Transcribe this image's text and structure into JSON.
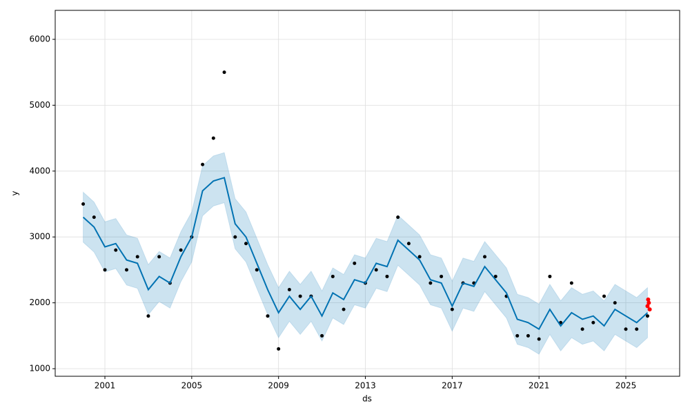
{
  "chart_data": {
    "type": "line",
    "xlabel": "ds",
    "ylabel": "y",
    "xlim": [
      1998.71,
      2027.48
    ],
    "ylim": [
      885,
      6440
    ],
    "xticks": [
      2001,
      2005,
      2009,
      2013,
      2017,
      2021,
      2025
    ],
    "yticks": [
      1000,
      2000,
      3000,
      4000,
      5000,
      6000
    ],
    "grid": true,
    "x": [
      2000,
      2000.5,
      2001,
      2001.5,
      2002,
      2002.5,
      2003,
      2003.5,
      2004,
      2004.5,
      2005,
      2005.5,
      2006,
      2006.5,
      2007,
      2007.5,
      2008,
      2008.5,
      2009,
      2009.5,
      2010,
      2010.5,
      2011,
      2011.5,
      2012,
      2012.5,
      2013,
      2013.5,
      2014,
      2014.5,
      2015,
      2015.5,
      2016,
      2016.5,
      2017,
      2017.5,
      2018,
      2018.5,
      2019,
      2019.5,
      2020,
      2020.5,
      2021,
      2021.5,
      2022,
      2022.5,
      2023,
      2023.5,
      2024,
      2024.5,
      2025,
      2025.5,
      2026
    ],
    "series": [
      {
        "style": "points",
        "color": "#000000",
        "values": [
          3500,
          3300,
          2500,
          2800,
          2500,
          2700,
          1800,
          2700,
          2300,
          2800,
          3000,
          4100,
          4500,
          5500,
          3000,
          2900,
          2500,
          1800,
          1300,
          2200,
          2100,
          2100,
          1500,
          2400,
          1900,
          2600,
          2300,
          2500,
          2400,
          3300,
          2900,
          2700,
          2300,
          2400,
          1900,
          2300,
          2300,
          2700,
          2400,
          2100,
          1500,
          1500,
          1450,
          2400,
          1700,
          2300,
          1600,
          1700,
          2100,
          2000,
          1600,
          1600,
          1800
        ]
      },
      {
        "style": "line",
        "color": "#0072B2",
        "values": [
          3300,
          3150,
          2850,
          2900,
          2650,
          2600,
          2200,
          2400,
          2300,
          2700,
          3000,
          3700,
          3850,
          3900,
          3200,
          3000,
          2600,
          2200,
          1850,
          2100,
          1900,
          2100,
          1800,
          2150,
          2050,
          2350,
          2300,
          2600,
          2550,
          2950,
          2800,
          2650,
          2350,
          2300,
          1950,
          2300,
          2250,
          2550,
          2350,
          2150,
          1750,
          1700,
          1600,
          1900,
          1650,
          1850,
          1750,
          1800,
          1650,
          1900,
          1800,
          1700,
          1850
        ]
      }
    ],
    "band": {
      "color": "#0072B2",
      "lower": [
        2920,
        2770,
        2470,
        2520,
        2270,
        2220,
        1820,
        2020,
        1920,
        2320,
        2620,
        3320,
        3470,
        3520,
        2820,
        2620,
        2220,
        1820,
        1470,
        1720,
        1520,
        1720,
        1420,
        1770,
        1670,
        1970,
        1920,
        2220,
        2170,
        2570,
        2420,
        2270,
        1970,
        1920,
        1570,
        1920,
        1870,
        2170,
        1970,
        1770,
        1370,
        1320,
        1220,
        1520,
        1270,
        1470,
        1370,
        1420,
        1270,
        1520,
        1420,
        1320,
        1470
      ],
      "upper": [
        3680,
        3530,
        3230,
        3280,
        3030,
        2980,
        2580,
        2780,
        2680,
        3080,
        3380,
        4080,
        4230,
        4280,
        3580,
        3380,
        2980,
        2580,
        2230,
        2480,
        2280,
        2480,
        2180,
        2530,
        2430,
        2730,
        2680,
        2980,
        2930,
        3330,
        3180,
        3030,
        2730,
        2680,
        2330,
        2680,
        2630,
        2930,
        2730,
        2530,
        2130,
        2080,
        1980,
        2280,
        2030,
        2230,
        2130,
        2180,
        2030,
        2280,
        2180,
        2080,
        2230
      ]
    },
    "highlight": {
      "color": "#ff0000",
      "x": [
        2026.0,
        2026.03,
        2026.06,
        2026.1
      ],
      "values": [
        1950,
        2050,
        2000,
        1900
      ]
    }
  }
}
